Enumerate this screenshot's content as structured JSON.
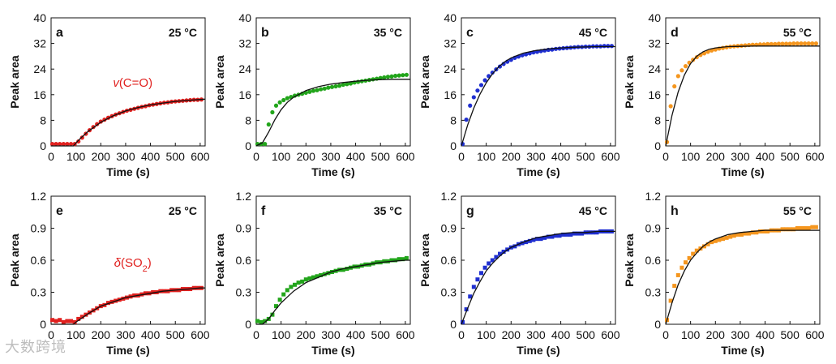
{
  "watermark": "大数跨境",
  "colors": {
    "a": "#e0201e",
    "b": "#22a51b",
    "c": "#1f2fd0",
    "d": "#f5961e",
    "e": "#e0201e",
    "f": "#22a51b",
    "g": "#1f2fd0",
    "h": "#f5961e",
    "fit": "#111111"
  },
  "chart_data": [
    {
      "id": "a",
      "type": "scatter",
      "panel_letter": "a",
      "temperature": "25 °C",
      "annotation": {
        "prefix": "v",
        "text": "(C=O)"
      },
      "xlabel": "Time (s)",
      "ylabel": "Peak area",
      "xlim": [
        0,
        620
      ],
      "ylim": [
        0,
        40
      ],
      "xticks": [
        0,
        100,
        200,
        300,
        400,
        500,
        600
      ],
      "yticks": [
        0,
        8,
        16,
        24,
        32,
        40
      ],
      "ytick_labels": [
        "0",
        "8",
        "16",
        "24",
        "32",
        "40"
      ],
      "marker": "circle",
      "x": [
        5,
        20,
        35,
        50,
        65,
        80,
        95,
        110,
        125,
        140,
        155,
        170,
        185,
        200,
        215,
        230,
        245,
        260,
        275,
        290,
        305,
        320,
        335,
        350,
        365,
        380,
        395,
        410,
        425,
        440,
        455,
        470,
        485,
        500,
        515,
        530,
        545,
        560,
        575,
        590,
        605
      ],
      "y": [
        0.6,
        0.6,
        0.6,
        0.6,
        0.6,
        0.6,
        0.6,
        1.4,
        2.6,
        3.8,
        4.9,
        5.9,
        6.8,
        7.6,
        8.2,
        8.8,
        9.3,
        9.8,
        10.2,
        10.6,
        11.0,
        11.3,
        11.6,
        11.9,
        12.2,
        12.4,
        12.7,
        12.9,
        13.1,
        13.3,
        13.5,
        13.6,
        13.8,
        13.9,
        14.0,
        14.1,
        14.2,
        14.3,
        14.4,
        14.4,
        14.5
      ],
      "fit": {
        "x": [
          0,
          90,
          100,
          120,
          150,
          200,
          250,
          300,
          350,
          400,
          450,
          500,
          550,
          600,
          620
        ],
        "y": [
          0,
          0,
          0.9,
          2.5,
          4.6,
          7.4,
          9.4,
          10.9,
          12.0,
          12.8,
          13.4,
          13.9,
          14.2,
          14.5,
          14.6
        ]
      }
    },
    {
      "id": "b",
      "type": "scatter",
      "panel_letter": "b",
      "temperature": "35 °C",
      "xlabel": "Time (s)",
      "ylabel": "Peak area",
      "xlim": [
        0,
        620
      ],
      "ylim": [
        0,
        40
      ],
      "xticks": [
        0,
        100,
        200,
        300,
        400,
        500,
        600
      ],
      "yticks": [
        0,
        8,
        16,
        24,
        32,
        40
      ],
      "ytick_labels": [
        "0",
        "8",
        "16",
        "24",
        "32",
        "40"
      ],
      "marker": "circle",
      "x": [
        5,
        20,
        35,
        50,
        65,
        80,
        95,
        110,
        125,
        140,
        155,
        170,
        185,
        200,
        215,
        230,
        245,
        260,
        275,
        290,
        305,
        320,
        335,
        350,
        365,
        380,
        395,
        410,
        425,
        440,
        455,
        470,
        485,
        500,
        515,
        530,
        545,
        560,
        575,
        590,
        605
      ],
      "y": [
        0.6,
        0.6,
        0.6,
        6.7,
        10.5,
        12.6,
        13.6,
        14.3,
        14.9,
        15.3,
        15.7,
        16.0,
        16.3,
        16.6,
        16.9,
        17.2,
        17.4,
        17.7,
        17.9,
        18.2,
        18.4,
        18.6,
        18.8,
        19.1,
        19.3,
        19.5,
        19.8,
        20.0,
        20.2,
        20.4,
        20.6,
        20.8,
        21.0,
        21.2,
        21.4,
        21.6,
        21.7,
        21.9,
        22.0,
        22.1,
        22.2
      ],
      "fit": {
        "x": [
          0,
          25,
          50,
          75,
          100,
          125,
          150,
          200,
          250,
          300,
          350,
          400,
          450,
          500,
          550,
          600,
          620
        ],
        "y": [
          0,
          1.0,
          4.3,
          8.2,
          11.3,
          13.6,
          15.2,
          17.3,
          18.5,
          19.3,
          19.8,
          20.2,
          20.5,
          20.7,
          20.8,
          20.8,
          20.8
        ]
      }
    },
    {
      "id": "c",
      "type": "scatter",
      "panel_letter": "c",
      "temperature": "45 °C",
      "xlabel": "Time (s)",
      "ylabel": "Peak area",
      "xlim": [
        0,
        620
      ],
      "ylim": [
        0,
        40
      ],
      "xticks": [
        0,
        100,
        200,
        300,
        400,
        500,
        600
      ],
      "yticks": [
        0,
        8,
        16,
        24,
        32,
        40
      ],
      "ytick_labels": [
        "0",
        "8",
        "16",
        "24",
        "32",
        "40"
      ],
      "marker": "circle",
      "x": [
        5,
        20,
        35,
        50,
        65,
        80,
        95,
        110,
        125,
        140,
        155,
        170,
        185,
        200,
        215,
        230,
        245,
        260,
        275,
        290,
        305,
        320,
        335,
        350,
        365,
        380,
        395,
        410,
        425,
        440,
        455,
        470,
        485,
        500,
        515,
        530,
        545,
        560,
        575,
        590,
        605
      ],
      "y": [
        0.6,
        8.2,
        12.6,
        15.2,
        17.3,
        19.0,
        20.5,
        21.8,
        22.9,
        23.9,
        24.8,
        25.6,
        26.3,
        26.9,
        27.5,
        27.9,
        28.3,
        28.6,
        28.9,
        29.2,
        29.4,
        29.6,
        29.8,
        30.0,
        30.1,
        30.3,
        30.4,
        30.5,
        30.6,
        30.7,
        30.8,
        30.9,
        30.9,
        31.0,
        31.0,
        31.1,
        31.1,
        31.1,
        31.2,
        31.2,
        31.2
      ],
      "fit": {
        "x": [
          0,
          25,
          50,
          75,
          100,
          125,
          150,
          175,
          200,
          250,
          300,
          350,
          400,
          450,
          500,
          550,
          600,
          620
        ],
        "y": [
          0,
          6.5,
          11.8,
          16.2,
          19.7,
          22.5,
          24.7,
          26.3,
          27.5,
          29.0,
          29.8,
          30.3,
          30.6,
          30.8,
          30.9,
          31.0,
          31.0,
          31.0
        ]
      }
    },
    {
      "id": "d",
      "type": "scatter",
      "panel_letter": "d",
      "temperature": "55 °C",
      "xlabel": "Time (s)",
      "ylabel": "Peak area",
      "xlim": [
        0,
        620
      ],
      "ylim": [
        0,
        40
      ],
      "xticks": [
        0,
        100,
        200,
        300,
        400,
        500,
        600
      ],
      "yticks": [
        0,
        8,
        16,
        24,
        32,
        40
      ],
      "ytick_labels": [
        "0",
        "8",
        "16",
        "24",
        "32",
        "40"
      ],
      "marker": "circle",
      "x": [
        5,
        20,
        35,
        50,
        65,
        80,
        95,
        110,
        125,
        140,
        155,
        170,
        185,
        200,
        215,
        230,
        245,
        260,
        275,
        290,
        305,
        320,
        335,
        350,
        365,
        380,
        395,
        410,
        425,
        440,
        455,
        470,
        485,
        500,
        515,
        530,
        545,
        560,
        575,
        590,
        605
      ],
      "y": [
        1.2,
        12.4,
        18.6,
        21.8,
        23.6,
        24.9,
        26.0,
        26.9,
        27.7,
        28.4,
        28.9,
        29.4,
        29.8,
        30.1,
        30.4,
        30.6,
        30.8,
        31.0,
        31.1,
        31.2,
        31.3,
        31.4,
        31.5,
        31.6,
        31.6,
        31.7,
        31.7,
        31.8,
        31.8,
        31.8,
        31.9,
        31.9,
        31.9,
        31.9,
        32.0,
        32.0,
        32.0,
        32.0,
        32.0,
        32.0,
        32.0
      ],
      "fit": {
        "x": [
          0,
          25,
          50,
          75,
          100,
          125,
          150,
          175,
          200,
          250,
          300,
          350,
          400,
          450,
          500,
          550,
          600,
          620
        ],
        "y": [
          0,
          9.5,
          16.8,
          22.1,
          25.7,
          28.0,
          29.4,
          30.2,
          30.6,
          31.0,
          31.1,
          31.2,
          31.2,
          31.2,
          31.2,
          31.2,
          31.2,
          31.2
        ]
      }
    },
    {
      "id": "e",
      "type": "scatter",
      "panel_letter": "e",
      "temperature": "25 °C",
      "annotation": {
        "prefix": "δ",
        "text": "(SO",
        "sub": "2",
        "suffix": ")"
      },
      "xlabel": "Time (s)",
      "ylabel": "Peak area",
      "xlim": [
        0,
        620
      ],
      "ylim": [
        0,
        1.2
      ],
      "xticks": [
        0,
        100,
        200,
        300,
        400,
        500,
        600
      ],
      "yticks": [
        0,
        0.3,
        0.6,
        0.9,
        1.2
      ],
      "ytick_labels": [
        "0",
        "0.3",
        "0.6",
        "0.9",
        "1.2"
      ],
      "marker": "square",
      "x": [
        5,
        20,
        35,
        50,
        65,
        80,
        95,
        110,
        125,
        140,
        155,
        170,
        185,
        200,
        215,
        230,
        245,
        260,
        275,
        290,
        305,
        320,
        335,
        350,
        365,
        380,
        395,
        410,
        425,
        440,
        455,
        470,
        485,
        500,
        515,
        530,
        545,
        560,
        575,
        590,
        605
      ],
      "y": [
        0.04,
        0.03,
        0.04,
        0.02,
        0.03,
        0.03,
        0.02,
        0.05,
        0.07,
        0.09,
        0.11,
        0.13,
        0.15,
        0.17,
        0.18,
        0.2,
        0.21,
        0.22,
        0.23,
        0.24,
        0.25,
        0.26,
        0.27,
        0.27,
        0.28,
        0.29,
        0.29,
        0.3,
        0.3,
        0.31,
        0.31,
        0.31,
        0.32,
        0.32,
        0.32,
        0.33,
        0.33,
        0.33,
        0.34,
        0.34,
        0.34
      ],
      "fit": {
        "x": [
          0,
          90,
          100,
          150,
          200,
          250,
          300,
          350,
          400,
          450,
          500,
          550,
          600,
          620
        ],
        "y": [
          0,
          0,
          0.02,
          0.1,
          0.17,
          0.21,
          0.25,
          0.27,
          0.29,
          0.31,
          0.32,
          0.33,
          0.34,
          0.34
        ]
      }
    },
    {
      "id": "f",
      "type": "scatter",
      "panel_letter": "f",
      "temperature": "35 °C",
      "xlabel": "Time (s)",
      "ylabel": "Peak area",
      "xlim": [
        0,
        620
      ],
      "ylim": [
        0,
        1.2
      ],
      "xticks": [
        0,
        100,
        200,
        300,
        400,
        500,
        600
      ],
      "yticks": [
        0,
        0.3,
        0.6,
        0.9,
        1.2
      ],
      "ytick_labels": [
        "0",
        "0.3",
        "0.6",
        "0.9",
        "1.2"
      ],
      "marker": "square",
      "x": [
        5,
        20,
        35,
        50,
        65,
        80,
        95,
        110,
        125,
        140,
        155,
        170,
        185,
        200,
        215,
        230,
        245,
        260,
        275,
        290,
        305,
        320,
        335,
        350,
        365,
        380,
        395,
        410,
        425,
        440,
        455,
        470,
        485,
        500,
        515,
        530,
        545,
        560,
        575,
        590,
        605
      ],
      "y": [
        0.03,
        0.02,
        0.03,
        0.05,
        0.09,
        0.17,
        0.23,
        0.28,
        0.32,
        0.35,
        0.37,
        0.39,
        0.4,
        0.42,
        0.43,
        0.44,
        0.45,
        0.46,
        0.47,
        0.48,
        0.49,
        0.5,
        0.51,
        0.51,
        0.52,
        0.53,
        0.54,
        0.54,
        0.55,
        0.56,
        0.56,
        0.57,
        0.58,
        0.58,
        0.59,
        0.59,
        0.6,
        0.6,
        0.61,
        0.61,
        0.62
      ],
      "fit": {
        "x": [
          0,
          25,
          50,
          75,
          100,
          150,
          200,
          250,
          300,
          350,
          400,
          450,
          500,
          550,
          600,
          620
        ],
        "y": [
          0,
          0,
          0.05,
          0.13,
          0.2,
          0.31,
          0.39,
          0.44,
          0.49,
          0.52,
          0.54,
          0.56,
          0.58,
          0.59,
          0.6,
          0.6
        ]
      }
    },
    {
      "id": "g",
      "type": "scatter",
      "panel_letter": "g",
      "temperature": "45 °C",
      "xlabel": "Time (s)",
      "ylabel": "Peak area",
      "xlim": [
        0,
        620
      ],
      "ylim": [
        0,
        1.2
      ],
      "xticks": [
        0,
        100,
        200,
        300,
        400,
        500,
        600
      ],
      "yticks": [
        0,
        0.3,
        0.6,
        0.9,
        1.2
      ],
      "ytick_labels": [
        "0",
        "0.3",
        "0.6",
        "0.9",
        "1.2"
      ],
      "marker": "square",
      "x": [
        5,
        20,
        35,
        50,
        65,
        80,
        95,
        110,
        125,
        140,
        155,
        170,
        185,
        200,
        215,
        230,
        245,
        260,
        275,
        290,
        305,
        320,
        335,
        350,
        365,
        380,
        395,
        410,
        425,
        440,
        455,
        470,
        485,
        500,
        515,
        530,
        545,
        560,
        575,
        590,
        605
      ],
      "y": [
        0.02,
        0.14,
        0.26,
        0.35,
        0.42,
        0.48,
        0.53,
        0.57,
        0.6,
        0.63,
        0.66,
        0.68,
        0.7,
        0.72,
        0.73,
        0.75,
        0.76,
        0.77,
        0.78,
        0.79,
        0.8,
        0.8,
        0.81,
        0.82,
        0.82,
        0.83,
        0.83,
        0.84,
        0.84,
        0.84,
        0.85,
        0.85,
        0.85,
        0.86,
        0.86,
        0.86,
        0.86,
        0.87,
        0.87,
        0.87,
        0.87
      ],
      "fit": {
        "x": [
          0,
          25,
          50,
          75,
          100,
          125,
          150,
          175,
          200,
          250,
          300,
          350,
          400,
          450,
          500,
          550,
          600,
          620
        ],
        "y": [
          0,
          0.15,
          0.29,
          0.4,
          0.5,
          0.57,
          0.63,
          0.68,
          0.72,
          0.77,
          0.81,
          0.83,
          0.85,
          0.86,
          0.86,
          0.87,
          0.87,
          0.87
        ]
      }
    },
    {
      "id": "h",
      "type": "scatter",
      "panel_letter": "h",
      "temperature": "55 °C",
      "xlabel": "Time (s)",
      "ylabel": "Peak area",
      "xlim": [
        0,
        620
      ],
      "ylim": [
        0,
        1.2
      ],
      "xticks": [
        0,
        100,
        200,
        300,
        400,
        500,
        600
      ],
      "yticks": [
        0,
        0.3,
        0.6,
        0.9,
        1.2
      ],
      "ytick_labels": [
        "0",
        "0.3",
        "0.6",
        "0.9",
        "1.2"
      ],
      "marker": "square",
      "x": [
        5,
        20,
        35,
        50,
        65,
        80,
        95,
        110,
        125,
        140,
        155,
        170,
        185,
        200,
        215,
        230,
        245,
        260,
        275,
        290,
        305,
        320,
        335,
        350,
        365,
        380,
        395,
        410,
        425,
        440,
        455,
        470,
        485,
        500,
        515,
        530,
        545,
        560,
        575,
        590,
        605
      ],
      "y": [
        0.04,
        0.22,
        0.36,
        0.46,
        0.53,
        0.58,
        0.62,
        0.66,
        0.69,
        0.71,
        0.73,
        0.75,
        0.77,
        0.78,
        0.79,
        0.8,
        0.81,
        0.82,
        0.83,
        0.84,
        0.84,
        0.85,
        0.85,
        0.86,
        0.86,
        0.87,
        0.87,
        0.87,
        0.88,
        0.88,
        0.88,
        0.89,
        0.89,
        0.89,
        0.89,
        0.9,
        0.9,
        0.9,
        0.9,
        0.91,
        0.91
      ],
      "fit": {
        "x": [
          0,
          25,
          50,
          75,
          100,
          125,
          150,
          175,
          200,
          250,
          300,
          350,
          400,
          450,
          500,
          550,
          600,
          620
        ],
        "y": [
          0,
          0.2,
          0.37,
          0.5,
          0.6,
          0.67,
          0.73,
          0.77,
          0.8,
          0.84,
          0.86,
          0.87,
          0.88,
          0.88,
          0.88,
          0.88,
          0.88,
          0.88
        ]
      }
    }
  ]
}
